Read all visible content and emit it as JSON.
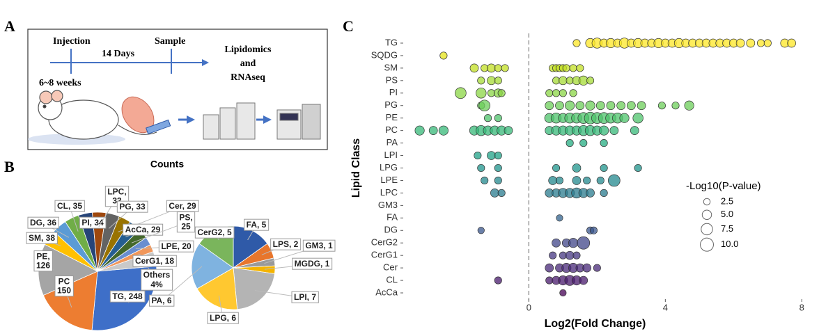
{
  "panel_labels": [
    "A",
    "B",
    "C"
  ],
  "diagram": {
    "injection": "Injection",
    "days": "14 Days",
    "sample": "Sample",
    "output": [
      "Lipidomics",
      "and",
      "RNAseq"
    ],
    "age": "6~8 weeks"
  },
  "chart_data": [
    {
      "type": "pie",
      "title": "Counts",
      "values": [
        248,
        150,
        126,
        38,
        36,
        35,
        34,
        33,
        33,
        29,
        29,
        25,
        20,
        18
      ],
      "value_labels": [
        "TG, 248",
        "PC\n150",
        "PE,\n126",
        "SM, 38",
        "DG, 36",
        "CL, 35",
        "PI, 34",
        "LPC,\n33",
        "PG, 33",
        "Cer, 29",
        "AcCa, 29",
        "PS,\n25",
        "LPE, 20",
        "CerG1, 18"
      ],
      "colors": [
        "#3e6fc8",
        "#ed7d31",
        "#a5a5a5",
        "#ffc000",
        "#5b9bd5",
        "#70ad47",
        "#264478",
        "#9e480e",
        "#636363",
        "#997300",
        "#255e91",
        "#43682b",
        "#698ed0",
        "#f1975a"
      ],
      "others": {
        "label": "Others",
        "value": 4,
        "value_label": "4%",
        "color": "#c9c9c9"
      }
    },
    {
      "type": "pie",
      "values": [
        5,
        2,
        1,
        1,
        7,
        6,
        6,
        5
      ],
      "value_labels": [
        "FA, 5",
        "LPS, 2",
        "GM3, 1",
        "MGDG, 1",
        "LPI, 7",
        "LPG, 6",
        "PA, 6",
        "CerG2, 5"
      ],
      "colors": [
        "#2f5aa8",
        "#e8762c",
        "#9a9a9a",
        "#f4b400",
        "#b4b4b4",
        "#ffc830",
        "#7fb3e0",
        "#7ab55c"
      ]
    },
    {
      "type": "bubble",
      "ylabel": "Lipid Class",
      "xlabel": "Log2(Fold Change)",
      "xlim": [
        -3.6,
        8.3
      ],
      "xticks": [
        0,
        4,
        8
      ],
      "vline": 0,
      "size_legend": {
        "title": "-Log10(P-value)",
        "ticks": [
          2.5,
          {
            "value": 5,
            "label": "5.0"
          },
          7.5,
          {
            "value": 10,
            "label": "10.0"
          }
        ]
      },
      "series": [
        {
          "name": "TG",
          "color": "#fde725",
          "x": [
            1.4,
            1.8,
            2.0,
            2.2,
            2.4,
            2.6,
            2.8,
            3.0,
            3.2,
            3.4,
            3.6,
            3.8,
            4.0,
            4.2,
            4.4,
            4.6,
            4.8,
            5.0,
            5.2,
            5.4,
            5.6,
            5.8,
            6.0,
            6.2,
            6.5,
            6.8,
            7.0,
            7.5,
            7.7
          ],
          "sizes": [
            3,
            5,
            6,
            4,
            5,
            4,
            6,
            4,
            5,
            4,
            4,
            5,
            4,
            4,
            5,
            4,
            4,
            4,
            4,
            4,
            4,
            4,
            4,
            4,
            4,
            3,
            3,
            4,
            4
          ]
        },
        {
          "name": "SQDG",
          "color": "#e5e419",
          "x": [
            -2.5
          ],
          "sizes": [
            3
          ]
        },
        {
          "name": "SM",
          "color": "#c2df23",
          "x": [
            -1.6,
            -1.3,
            -1.1,
            -0.9,
            -0.7,
            0.7,
            0.8,
            0.9,
            1.0,
            1.1,
            1.3,
            1.5
          ],
          "sizes": [
            4,
            3,
            4,
            3,
            3,
            3,
            3,
            3,
            3,
            3,
            3,
            3
          ]
        },
        {
          "name": "PS",
          "color": "#a5db36",
          "x": [
            -1.4,
            -1.1,
            -0.9,
            0.8,
            1.0,
            1.2,
            1.4,
            1.6,
            1.8
          ],
          "sizes": [
            3,
            4,
            3,
            3,
            4,
            3,
            4,
            5,
            3
          ]
        },
        {
          "name": "PI",
          "color": "#8bd646",
          "x": [
            -2.0,
            -1.4,
            -1.1,
            -0.9,
            -0.8,
            0.6,
            0.8,
            1.0,
            1.3
          ],
          "sizes": [
            7,
            6,
            3,
            4,
            3,
            3,
            3,
            3,
            3
          ]
        },
        {
          "name": "PG",
          "color": "#6ccd5a",
          "x": [
            -1.4,
            -1.3,
            0.6,
            0.9,
            1.2,
            1.5,
            1.8,
            2.1,
            2.4,
            2.7,
            3.0,
            3.3,
            3.9,
            4.3,
            4.7
          ],
          "sizes": [
            3,
            7,
            4,
            4,
            5,
            4,
            5,
            4,
            4,
            4,
            4,
            4,
            3,
            3,
            5
          ]
        },
        {
          "name": "PE",
          "color": "#4ec36b",
          "x": [
            -1.2,
            -0.9,
            0.6,
            0.8,
            1.0,
            1.2,
            1.4,
            1.6,
            1.8,
            2.0,
            2.2,
            2.4,
            2.6,
            2.8,
            3.2
          ],
          "sizes": [
            3,
            3,
            5,
            6,
            5,
            6,
            6,
            7,
            8,
            7,
            7,
            6,
            6,
            5,
            6
          ]
        },
        {
          "name": "PC",
          "color": "#37b878",
          "x": [
            -3.2,
            -2.8,
            -2.5,
            -1.6,
            -1.4,
            -1.2,
            -1.0,
            -0.8,
            -0.6,
            0.6,
            0.8,
            1.0,
            1.2,
            1.4,
            1.6,
            1.8,
            2.0,
            2.2,
            2.5,
            3.1
          ],
          "sizes": [
            5,
            4,
            5,
            5,
            6,
            5,
            5,
            5,
            4,
            4,
            5,
            5,
            5,
            5,
            6,
            6,
            5,
            5,
            4,
            4
          ]
        },
        {
          "name": "PA",
          "color": "#25ac82",
          "x": [
            1.2,
            1.6,
            2.2
          ],
          "sizes": [
            3,
            3,
            3
          ]
        },
        {
          "name": "LPI",
          "color": "#1fa187",
          "x": [
            -1.5,
            -1.1,
            -0.9
          ],
          "sizes": [
            3,
            4,
            3
          ]
        },
        {
          "name": "LPG",
          "color": "#1f948c",
          "x": [
            -1.4,
            -0.9,
            0.8,
            1.4,
            2.2,
            3.2
          ],
          "sizes": [
            3,
            3,
            3,
            4,
            3,
            3
          ]
        },
        {
          "name": "LPE",
          "color": "#23888e",
          "x": [
            -1.3,
            -0.9,
            0.7,
            0.9,
            1.4,
            1.7,
            2.1,
            2.5
          ],
          "sizes": [
            3,
            3,
            4,
            3,
            4,
            3,
            3,
            8
          ]
        },
        {
          "name": "LPC",
          "color": "#297b8e",
          "x": [
            -1.0,
            -0.8,
            0.6,
            0.8,
            1.0,
            1.2,
            1.4,
            1.6,
            1.8,
            2.2
          ],
          "sizes": [
            4,
            3,
            4,
            4,
            5,
            5,
            6,
            5,
            4,
            3
          ]
        },
        {
          "name": "GM3",
          "color": "#2d708e",
          "x": [],
          "sizes": []
        },
        {
          "name": "FA",
          "color": "#33638d",
          "x": [
            0.9
          ],
          "sizes": [
            2.5
          ]
        },
        {
          "name": "DG",
          "color": "#39568c",
          "x": [
            -1.4,
            1.8,
            1.9
          ],
          "sizes": [
            2.5,
            3,
            3
          ]
        },
        {
          "name": "CerG2",
          "color": "#404688",
          "x": [
            0.8,
            1.1,
            1.3,
            1.6
          ],
          "sizes": [
            4,
            4,
            5,
            9
          ]
        },
        {
          "name": "CerG1",
          "color": "#453781",
          "x": [
            0.7,
            1.0,
            1.2,
            1.4
          ],
          "sizes": [
            3,
            3,
            4,
            3
          ]
        },
        {
          "name": "Cer",
          "color": "#482878",
          "x": [
            0.6,
            0.9,
            1.1,
            1.3,
            1.5,
            1.7,
            2.0
          ],
          "sizes": [
            4,
            4,
            5,
            5,
            4,
            4,
            3
          ]
        },
        {
          "name": "CL",
          "color": "#481a6c",
          "x": [
            -0.9,
            0.6,
            0.8,
            1.0,
            1.2,
            1.4,
            1.6
          ],
          "sizes": [
            3,
            3,
            4,
            5,
            6,
            5,
            4
          ]
        },
        {
          "name": "AcCa",
          "color": "#440154",
          "x": [
            1.0
          ],
          "sizes": [
            2.5
          ]
        }
      ]
    }
  ]
}
